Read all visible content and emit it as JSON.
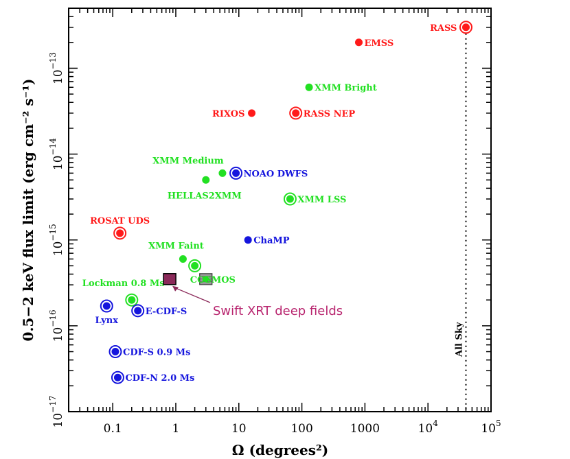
{
  "chart_data": {
    "type": "scatter",
    "title": "",
    "xlabel": "Ω (degrees²)",
    "ylabel": "0.5−2 keV flux limit (erg cm⁻² s⁻¹)",
    "xscale": "log",
    "yscale": "log",
    "xlim": [
      0.02,
      100000
    ],
    "ylim": [
      1e-17,
      5e-13
    ],
    "x_ticks": [
      {
        "value": 0.1,
        "label": "0.1"
      },
      {
        "value": 1,
        "label": "1"
      },
      {
        "value": 10,
        "label": "10"
      },
      {
        "value": 100,
        "label": "100"
      },
      {
        "value": 1000,
        "label": "1000"
      },
      {
        "value": 10000,
        "base": "10",
        "exp": "4"
      },
      {
        "value": 100000,
        "base": "10",
        "exp": "5"
      }
    ],
    "y_ticks": [
      {
        "value": 1e-17,
        "base": "10",
        "exp": "−17"
      },
      {
        "value": 1e-16,
        "base": "10",
        "exp": "−16"
      },
      {
        "value": 1e-15,
        "base": "10",
        "exp": "−15"
      },
      {
        "value": 1e-14,
        "base": "10",
        "exp": "−14"
      },
      {
        "value": 1e-13,
        "base": "10",
        "exp": "−13"
      }
    ],
    "colors": {
      "red": "#ff1a1a",
      "green": "#22e022",
      "blue": "#1515dd",
      "swift": "#8b2a5a",
      "swift_text": "#b8246e"
    },
    "points": [
      {
        "name": "RASS",
        "x": 40000,
        "y": 3e-13,
        "color": "red",
        "ring": true,
        "label_pos": "left"
      },
      {
        "name": "EMSS",
        "x": 800,
        "y": 2e-13,
        "color": "red",
        "ring": false,
        "label_pos": "right"
      },
      {
        "name": "XMM Bright",
        "x": 130,
        "y": 6e-14,
        "color": "green",
        "ring": false,
        "label_pos": "right"
      },
      {
        "name": "RIXOS",
        "x": 16,
        "y": 3e-14,
        "color": "red",
        "ring": false,
        "label_pos": "left"
      },
      {
        "name": "RASS NEP",
        "x": 80,
        "y": 3e-14,
        "color": "red",
        "ring": true,
        "label_pos": "right"
      },
      {
        "name": "XMM Medium",
        "x": 5.5,
        "y": 6e-15,
        "color": "green",
        "ring": false,
        "label_pos": "above-left"
      },
      {
        "name": "NOAO DWFS",
        "x": 9,
        "y": 6e-15,
        "color": "blue",
        "ring": true,
        "label_pos": "right"
      },
      {
        "name": "HELLAS2XMM",
        "x": 3,
        "y": 5e-15,
        "color": "green",
        "ring": false,
        "label_pos": "below"
      },
      {
        "name": "XMM LSS",
        "x": 65,
        "y": 3e-15,
        "color": "green",
        "ring": true,
        "label_pos": "right"
      },
      {
        "name": "ROSAT UDS",
        "x": 0.13,
        "y": 1.2e-15,
        "color": "red",
        "ring": true,
        "label_pos": "above"
      },
      {
        "name": "ChaMP",
        "x": 14,
        "y": 1e-15,
        "color": "blue",
        "ring": false,
        "label_pos": "right"
      },
      {
        "name": "XMM Faint",
        "x": 1.3,
        "y": 6e-16,
        "color": "green",
        "ring": false,
        "label_pos": "above"
      },
      {
        "name": "",
        "x": 2,
        "y": 5e-16,
        "color": "green",
        "ring": true,
        "label_pos": "none"
      },
      {
        "name": "COSMOS",
        "x": 3,
        "y": 3.5e-16,
        "color": "green",
        "ring": false,
        "label_pos": "right",
        "marker": "hatched-square"
      },
      {
        "name": "Lockman 0.8 Ms",
        "x": 0.2,
        "y": 2e-16,
        "color": "green",
        "ring": true,
        "label_pos": "above-left"
      },
      {
        "name": "Lynx",
        "x": 0.08,
        "y": 1.7e-16,
        "color": "blue",
        "ring": true,
        "label_pos": "below"
      },
      {
        "name": "E-CDF-S",
        "x": 0.25,
        "y": 1.5e-16,
        "color": "blue",
        "ring": true,
        "label_pos": "right"
      },
      {
        "name": "CDF-S 0.9 Ms",
        "x": 0.11,
        "y": 5e-17,
        "color": "blue",
        "ring": true,
        "label_pos": "right"
      },
      {
        "name": "CDF-N 2.0 Ms",
        "x": 0.12,
        "y": 2.5e-17,
        "color": "blue",
        "ring": true,
        "label_pos": "right"
      }
    ],
    "swift_marker": {
      "x": 0.8,
      "y": 3.5e-16
    },
    "annotations": [
      {
        "text": "Swift XRT deep fields",
        "arrow_to_x": 0.8,
        "arrow_to_y": 3.5e-16
      },
      {
        "text": "All Sky",
        "x": 40000
      }
    ]
  }
}
